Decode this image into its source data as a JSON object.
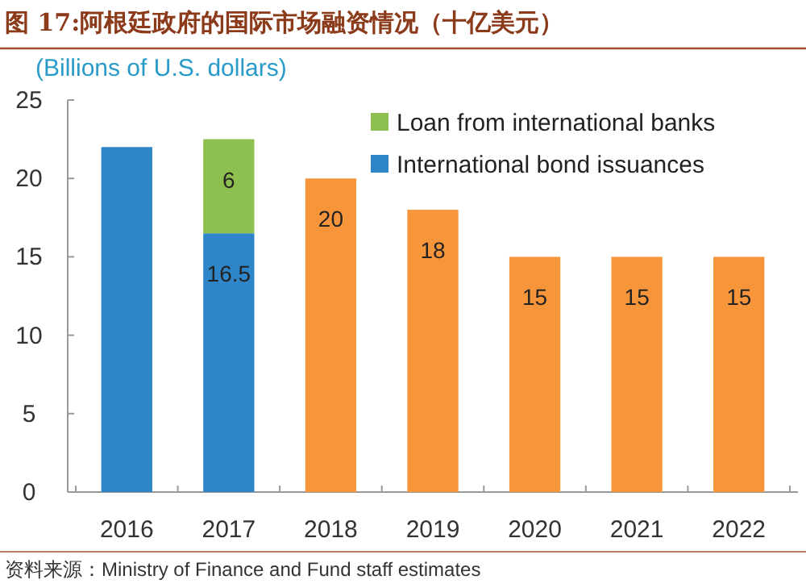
{
  "chart_data": {
    "type": "bar",
    "stacked": true,
    "title": "图 17:阿根廷政府的国际市场融资情况（十亿美元）",
    "ylabel": "(Billions of U.S. dollars)",
    "annotations": [
      "资料来源：Ministry of Finance and Fund staff estimates"
    ],
    "categories": [
      "2016",
      "2017",
      "2018",
      "2019",
      "2020",
      "2021",
      "2022"
    ],
    "series": [
      {
        "name": "International bond issuances",
        "color": "#2e86c8",
        "values": [
          22,
          16.5,
          null,
          null,
          null,
          null,
          null
        ],
        "value_labels": [
          null,
          "16.5",
          null,
          null,
          null,
          null,
          null
        ]
      },
      {
        "name": "Loan from international banks",
        "color": "#8dc04e",
        "values": [
          null,
          6,
          null,
          null,
          null,
          null,
          null
        ],
        "value_labels": [
          null,
          "6",
          null,
          null,
          null,
          null,
          null
        ]
      },
      {
        "color": "#f7953a",
        "values": [
          null,
          null,
          20,
          18,
          15,
          15,
          15
        ],
        "value_labels": [
          null,
          null,
          "20",
          "18",
          "15",
          "15",
          "15"
        ]
      }
    ],
    "ylim": [
      0,
      25
    ],
    "yticks": [
      0,
      5,
      10,
      15,
      20,
      25
    ],
    "legend": "top right"
  }
}
